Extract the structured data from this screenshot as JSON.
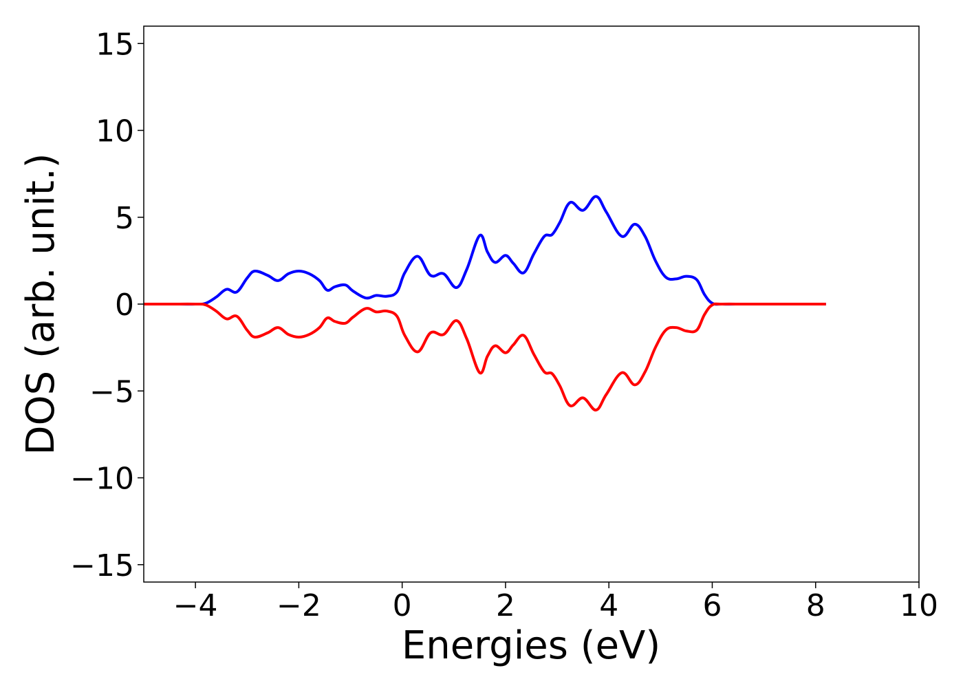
{
  "chart_data": {
    "type": "line",
    "xlabel": "Energies (eV)",
    "ylabel": "DOS (arb. unit.)",
    "xlim": [
      -5,
      10
    ],
    "ylim": [
      -16,
      16
    ],
    "grid": false,
    "xticks": [
      -4,
      -2,
      0,
      2,
      4,
      6,
      8,
      10
    ],
    "yticks": [
      -15,
      -10,
      -5,
      0,
      5,
      10,
      15
    ],
    "xtick_labels": [
      "−4",
      "−2",
      "0",
      "2",
      "4",
      "6",
      "8",
      "10"
    ],
    "ytick_labels": [
      "−15",
      "−10",
      "−5",
      "0",
      "5",
      "10",
      "15"
    ],
    "series": [
      {
        "color": "#0000ff",
        "x": [
          -5.0,
          -4.5,
          -4.0,
          -3.8,
          -3.6,
          -3.4,
          -3.2,
          -3.0,
          -2.85,
          -2.6,
          -2.4,
          -2.2,
          -2.0,
          -1.8,
          -1.6,
          -1.45,
          -1.3,
          -1.1,
          -0.95,
          -0.7,
          -0.5,
          -0.3,
          -0.1,
          0.05,
          0.3,
          0.55,
          0.8,
          1.05,
          1.25,
          1.5,
          1.65,
          1.8,
          2.0,
          2.15,
          2.35,
          2.55,
          2.75,
          2.9,
          3.05,
          3.25,
          3.5,
          3.75,
          3.95,
          4.25,
          4.5,
          4.7,
          4.9,
          5.1,
          5.3,
          5.5,
          5.7,
          5.85,
          6.0,
          6.2,
          6.6,
          7.0,
          7.5,
          8.2
        ],
        "y": [
          0.0,
          0.0,
          0.0,
          0.05,
          0.4,
          0.85,
          0.7,
          1.5,
          1.9,
          1.65,
          1.35,
          1.75,
          1.9,
          1.75,
          1.35,
          0.8,
          1.0,
          1.1,
          0.75,
          0.35,
          0.5,
          0.45,
          0.7,
          1.8,
          2.75,
          1.65,
          1.75,
          0.95,
          2.0,
          3.95,
          3.0,
          2.4,
          2.8,
          2.35,
          1.8,
          2.9,
          3.9,
          4.0,
          4.7,
          5.85,
          5.4,
          6.2,
          5.3,
          3.9,
          4.6,
          3.9,
          2.5,
          1.55,
          1.45,
          1.6,
          1.4,
          0.55,
          0.05,
          0.0,
          0.0,
          0.0,
          0.0,
          0.0
        ]
      },
      {
        "color": "#ff0000",
        "x": [
          -5.0,
          -4.5,
          -4.0,
          -3.8,
          -3.6,
          -3.4,
          -3.2,
          -3.0,
          -2.85,
          -2.6,
          -2.4,
          -2.2,
          -2.0,
          -1.8,
          -1.6,
          -1.45,
          -1.3,
          -1.1,
          -0.95,
          -0.7,
          -0.5,
          -0.3,
          -0.1,
          0.05,
          0.3,
          0.55,
          0.8,
          1.05,
          1.25,
          1.5,
          1.65,
          1.8,
          2.0,
          2.15,
          2.35,
          2.55,
          2.75,
          2.9,
          3.05,
          3.25,
          3.5,
          3.75,
          3.95,
          4.25,
          4.5,
          4.7,
          4.9,
          5.1,
          5.3,
          5.5,
          5.7,
          5.85,
          6.0,
          6.2,
          6.6,
          7.0,
          7.5,
          8.2
        ],
        "y": [
          0.0,
          0.0,
          0.0,
          -0.05,
          -0.4,
          -0.85,
          -0.7,
          -1.5,
          -1.9,
          -1.65,
          -1.35,
          -1.75,
          -1.9,
          -1.75,
          -1.35,
          -0.8,
          -1.0,
          -1.1,
          -0.75,
          -0.25,
          -0.45,
          -0.4,
          -0.7,
          -1.8,
          -2.75,
          -1.65,
          -1.75,
          -0.95,
          -2.0,
          -3.95,
          -3.0,
          -2.4,
          -2.8,
          -2.35,
          -1.8,
          -2.9,
          -3.9,
          -4.0,
          -4.7,
          -5.85,
          -5.4,
          -6.1,
          -5.2,
          -3.95,
          -4.65,
          -3.9,
          -2.5,
          -1.5,
          -1.35,
          -1.55,
          -1.5,
          -0.6,
          -0.05,
          0.0,
          0.0,
          0.0,
          0.0,
          0.0
        ]
      }
    ]
  }
}
